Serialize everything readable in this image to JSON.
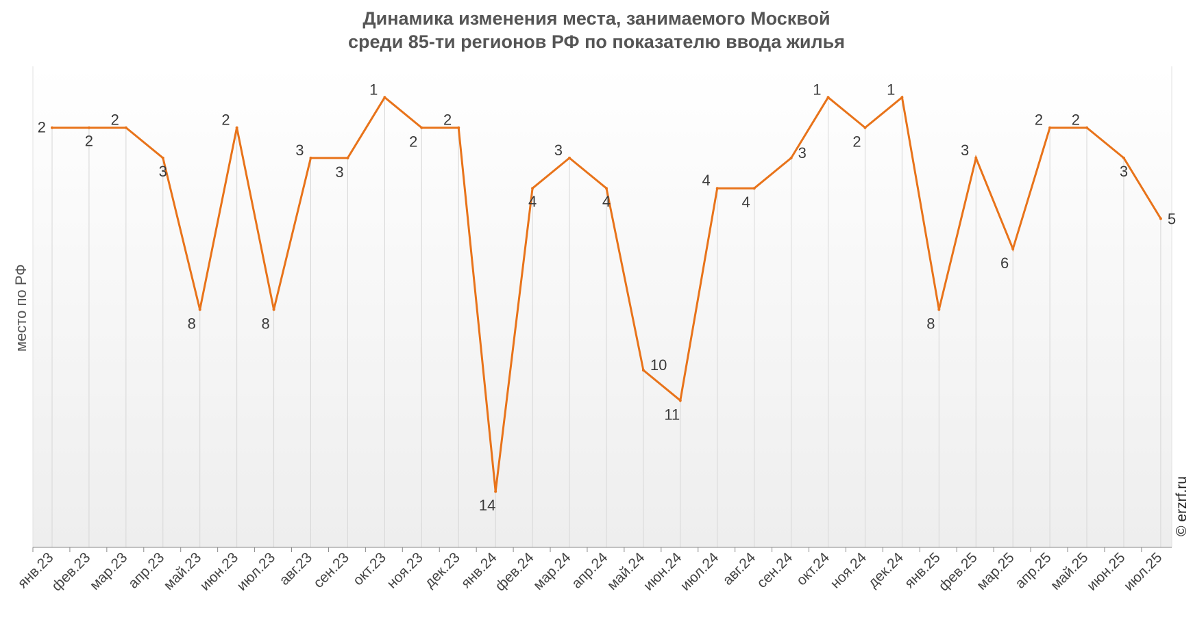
{
  "chart_data": {
    "type": "line",
    "title_lines": [
      "Динамика изменения места, занимаемого Москвой",
      "среди 85-ти регионов РФ по показателю ввода жилья"
    ],
    "ylabel": "место по РФ",
    "xlabel": "",
    "y_reversed": true,
    "ylim": [
      0,
      16
    ],
    "grid": "vertical",
    "categories": [
      "янв.23",
      "фев.23",
      "мар.23",
      "апр.23",
      "май.23",
      "июн.23",
      "июл.23",
      "авг.23",
      "сен.23",
      "окт.23",
      "ноя.23",
      "дек.23",
      "янв.24",
      "фев.24",
      "мар.24",
      "апр.24",
      "май.24",
      "июн.24",
      "июл.24",
      "авг.24",
      "сен.24",
      "окт.24",
      "ноя.24",
      "дек.24",
      "янв.25",
      "фев.25",
      "мар.25",
      "апр.25",
      "май.25",
      "июн.25",
      "июл.25"
    ],
    "series": [
      {
        "values": [
          2,
          2,
          2,
          3,
          8,
          2,
          8,
          3,
          3,
          1,
          2,
          2,
          14,
          4,
          3,
          4,
          10,
          11,
          4,
          4,
          3,
          1,
          2,
          1,
          8,
          3,
          6,
          2,
          2,
          3,
          5
        ]
      }
    ],
    "line_color": "#E8731A"
  },
  "copyright": "© erzrf.ru",
  "colors": {
    "line": "#E8731A",
    "grid": "#d6d6d6",
    "axis": "#888888"
  }
}
